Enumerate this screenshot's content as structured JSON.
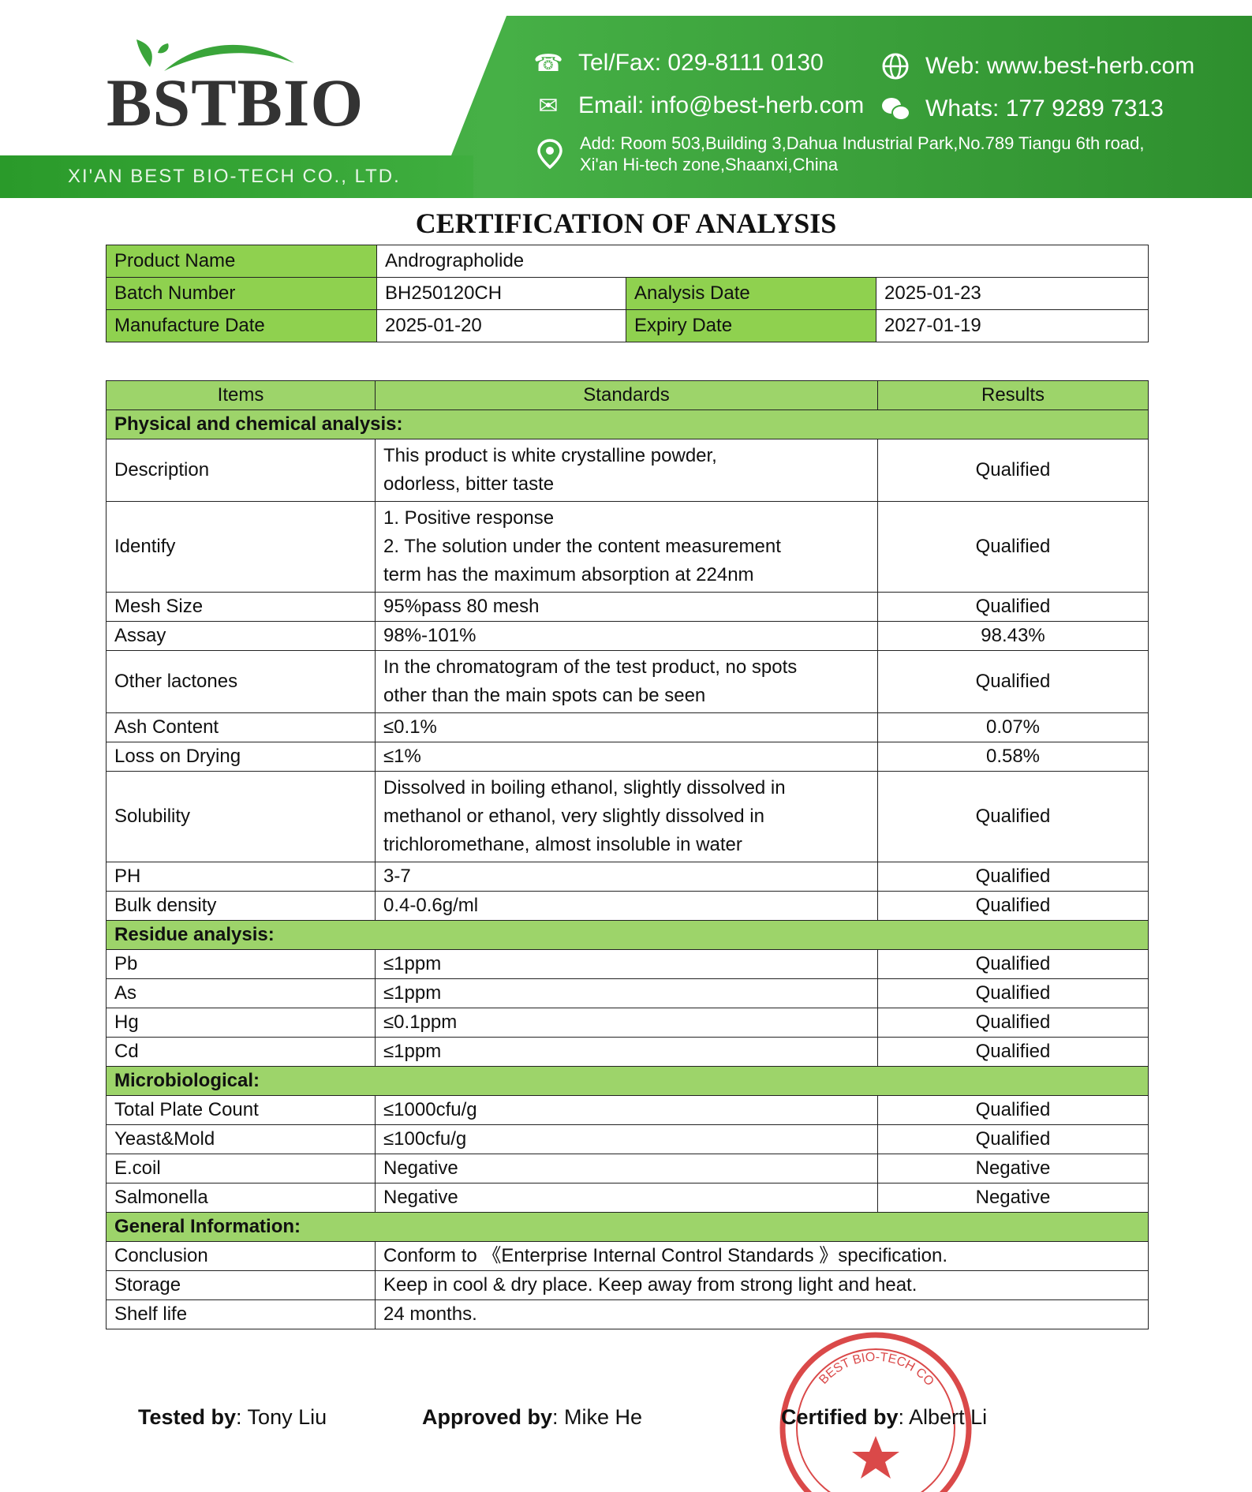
{
  "header": {
    "logo_text": "BSTBIO",
    "company": "XI'AN BEST BIO-TECH CO., LTD.",
    "tel": "Tel/Fax: 029-8111 0130",
    "email": "Email: info@best-herb.com",
    "web": "Web: www.best-herb.com",
    "whats": "Whats: 177 9289 7313",
    "address_line1": "Add: Room 503,Building 3,Dahua Industrial Park,No.789 Tiangu 6th road,",
    "address_line2": "Xi'an Hi-tech zone,Shaanxi,China",
    "brand_color": "#3aa53a"
  },
  "title": "CERTIFICATION OF ANALYSIS",
  "info": {
    "product_name_label": "Product Name",
    "product_name": "Andrographolide",
    "batch_label": "Batch Number",
    "batch": "BH250120CH",
    "analysis_date_label": "Analysis Date",
    "analysis_date": "2025-01-23",
    "manufacture_label": "Manufacture Date",
    "manufacture_date": "2025-01-20",
    "expiry_label": "Expiry Date",
    "expiry_date": "2027-01-19"
  },
  "table": {
    "columns": [
      "Items",
      "Standards",
      "Results"
    ],
    "rows": [
      {
        "section": "Physical and chemical analysis:"
      },
      {
        "item": "Description",
        "standard": [
          "This product is white crystalline powder,",
          "odorless, bitter taste"
        ],
        "result": "Qualified"
      },
      {
        "item": "Identify",
        "standard": [
          "1.  Positive response",
          "2.  The solution under the content measurement",
          "term has the maximum absorption at 224nm"
        ],
        "result": "Qualified"
      },
      {
        "item": "Mesh Size",
        "standard": [
          "95%pass 80 mesh"
        ],
        "result": "Qualified"
      },
      {
        "item": "Assay",
        "standard": [
          "98%-101%"
        ],
        "result": "98.43%"
      },
      {
        "item": "Other lactones",
        "standard": [
          "In the chromatogram of the test product, no spots",
          "other than the main spots can be seen"
        ],
        "result": "Qualified"
      },
      {
        "item": "Ash Content",
        "standard": [
          "≤0.1%"
        ],
        "result": "0.07%"
      },
      {
        "item": "Loss on Drying",
        "standard": [
          "≤1%"
        ],
        "result": "0.58%"
      },
      {
        "item": "Solubility",
        "standard": [
          "Dissolved in boiling ethanol, slightly dissolved in",
          "methanol or ethanol, very slightly dissolved in",
          "trichloromethane, almost insoluble in water"
        ],
        "result": "Qualified"
      },
      {
        "item": "PH",
        "standard": [
          "3-7"
        ],
        "result": "Qualified"
      },
      {
        "item": "Bulk density",
        "standard": [
          "0.4-0.6g/ml"
        ],
        "result": "Qualified"
      },
      {
        "section": "Residue analysis:"
      },
      {
        "item": "Pb",
        "standard": [
          "≤1ppm"
        ],
        "result": "Qualified"
      },
      {
        "item": "As",
        "standard": [
          "≤1ppm"
        ],
        "result": "Qualified"
      },
      {
        "item": "Hg",
        "standard": [
          "≤0.1ppm"
        ],
        "result": "Qualified"
      },
      {
        "item": "Cd",
        "standard": [
          "≤1ppm"
        ],
        "result": "Qualified"
      },
      {
        "section": "Microbiological:"
      },
      {
        "item": "Total Plate Count",
        "standard": [
          "≤1000cfu/g"
        ],
        "result": "Qualified"
      },
      {
        "item": "Yeast&Mold",
        "standard": [
          "≤100cfu/g"
        ],
        "result": "Qualified"
      },
      {
        "item": "E.coil",
        "standard": [
          "Negative"
        ],
        "result": "Negative"
      },
      {
        "item": "Salmonella",
        "standard": [
          "Negative"
        ],
        "result": "Negative"
      },
      {
        "section": "General Information:"
      },
      {
        "item": "Conclusion",
        "info": "Conform to  《Enterprise Internal Control Standards 》specification."
      },
      {
        "item": "Storage",
        "info": "Keep in cool & dry place. Keep away from strong light and heat."
      },
      {
        "item": "Shelf life",
        "info": "24 months."
      }
    ]
  },
  "signatures": {
    "tested_label": "Tested by",
    "tested": ": Tony Liu",
    "approved_label": "Approved by",
    "approved": ": Mike He",
    "certified_label": "Certified by",
    "certified": ": Albert Li"
  },
  "stamp": {
    "text": "BEST BIO-TECH CO., LTD.",
    "color": "#d42a2a"
  }
}
